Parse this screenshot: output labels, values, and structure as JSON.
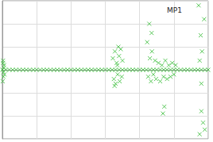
{
  "chart_data": {
    "type": "scatter",
    "series": [
      {
        "name": "MP1",
        "color": "#33bb33",
        "marker": "x",
        "x": [
          0,
          0.1,
          0.2,
          0.3,
          0.4,
          0.5,
          0.6,
          0.7,
          0.8,
          0.9,
          1.0,
          1.1,
          1.2,
          1.3,
          1.4,
          1.5,
          1.6,
          1.7,
          1.8,
          1.9,
          2.0,
          2.1,
          2.2,
          2.3,
          2.4,
          2.5,
          2.6,
          2.7,
          2.8,
          2.9,
          3.0,
          3.1,
          3.2,
          3.3,
          3.4,
          3.5,
          3.6,
          3.7,
          3.8,
          3.9,
          4.0,
          4.1,
          4.2,
          4.3,
          4.4,
          4.5,
          4.6,
          4.7,
          4.8,
          4.9,
          5.0,
          5.1,
          5.2,
          5.3,
          5.4,
          5.5,
          5.6,
          5.7,
          5.8,
          5.9,
          6.0,
          0.02,
          0.03,
          0.05,
          0.01,
          0.04,
          0.06,
          0.02,
          0.03,
          3.22,
          3.25,
          3.28,
          3.3,
          3.33,
          3.36,
          3.4,
          3.42,
          3.45,
          3.48,
          3.5,
          3.38,
          3.27,
          3.35,
          4.22,
          4.25,
          4.3,
          4.33,
          4.36,
          4.4,
          4.45,
          4.48,
          4.28,
          4.35,
          4.55,
          4.6,
          4.65,
          4.7,
          4.75,
          4.8,
          4.85,
          4.9,
          4.95,
          5.0,
          5.05,
          4.72,
          4.68,
          5.72,
          5.75,
          5.78,
          5.8,
          5.82,
          5.85,
          5.88,
          5.75,
          5.8,
          5.9
        ],
        "values": [
          0,
          0,
          0,
          0,
          0,
          0,
          0,
          0,
          0,
          0,
          0,
          0,
          0,
          0,
          0,
          0,
          0,
          0,
          0,
          0,
          0,
          0,
          0,
          0,
          0,
          0,
          0,
          0,
          0,
          0,
          0,
          0,
          0,
          0,
          0,
          0,
          0,
          0,
          0,
          0,
          0,
          0,
          0,
          0,
          0,
          0,
          0,
          0,
          0,
          0,
          0,
          0,
          0,
          0,
          0,
          0,
          0,
          0,
          0,
          0,
          0,
          0.4,
          -0.3,
          0.2,
          -0.5,
          0.1,
          -0.2,
          0.3,
          -0.1,
          0.5,
          -0.4,
          0.8,
          -0.6,
          0.3,
          -0.2,
          0.6,
          -0.5,
          0.9,
          -0.3,
          0.4,
          1.0,
          -0.7,
          0.2,
          1.2,
          -0.3,
          0.5,
          -0.5,
          0.8,
          -0.2,
          0.4,
          -0.4,
          2.0,
          1.6,
          0.3,
          -0.5,
          0.2,
          -0.3,
          0.4,
          -0.4,
          0.2,
          -0.3,
          0.3,
          -0.2,
          0.2,
          -1.6,
          -1.9,
          2.8,
          -2.8,
          1.5,
          -1.8,
          0.8,
          -2.3,
          2.2,
          0.4,
          -0.6,
          -2.6
        ]
      }
    ],
    "xlim": [
      0,
      6
    ],
    "xticks": [
      0,
      1,
      2,
      3,
      4,
      5,
      6
    ],
    "ylim": [
      -3,
      3
    ],
    "yticks": [
      -3,
      -2,
      -1,
      0,
      1,
      2,
      3
    ],
    "grid": true,
    "tick_labels": false,
    "legend": "upper right"
  }
}
